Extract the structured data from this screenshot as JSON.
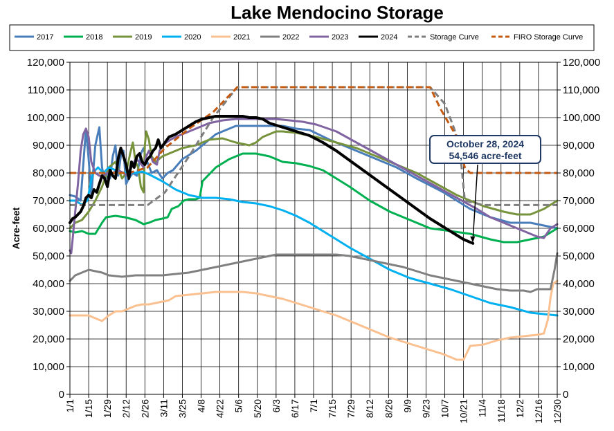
{
  "chart_data": {
    "type": "line",
    "title": "Lake Mendocino Storage",
    "ylabel": "Acre-feet",
    "xlabel": "",
    "ylim": [
      0,
      120000
    ],
    "yticks": [
      0,
      10000,
      20000,
      30000,
      40000,
      50000,
      60000,
      70000,
      80000,
      90000,
      100000,
      110000,
      120000
    ],
    "ytick_labels": [
      "0",
      "10,000",
      "20,000",
      "30,000",
      "40,000",
      "50,000",
      "60,000",
      "70,000",
      "80,000",
      "90,000",
      "100,000",
      "110,000",
      "120,000"
    ],
    "xlim": [
      1,
      365
    ],
    "xticks": [
      1,
      15,
      29,
      43,
      57,
      71,
      85,
      99,
      113,
      127,
      141,
      155,
      169,
      183,
      197,
      211,
      225,
      239,
      253,
      267,
      281,
      295,
      309,
      323,
      337,
      351,
      365
    ],
    "xtick_labels": [
      "1/1",
      "1/15",
      "1/29",
      "2/12",
      "2/26",
      "3/11",
      "3/25",
      "4/8",
      "4/22",
      "5/6",
      "5/20",
      "6/3",
      "6/17",
      "7/1",
      "7/15",
      "7/29",
      "8/12",
      "8/26",
      "9/9",
      "9/23",
      "10/7",
      "10/21",
      "11/4",
      "11/18",
      "12/2",
      "12/16",
      "12/30"
    ],
    "grid": true,
    "legend_position": "top",
    "series": [
      {
        "name": "2017",
        "color": "#4a7ebb",
        "width": 3,
        "dash": "solid",
        "x": [
          1,
          5,
          9,
          11,
          13,
          15,
          17,
          20,
          23,
          25,
          27,
          29,
          31,
          33,
          35,
          37,
          39,
          41,
          43,
          45,
          48,
          51,
          54,
          56,
          58,
          62,
          66,
          70,
          74,
          78,
          85,
          95,
          110,
          125,
          140,
          160,
          170,
          180,
          195,
          210,
          225,
          245,
          260,
          280,
          300,
          315,
          330,
          345,
          365
        ],
        "y": [
          72000,
          71500,
          70000,
          83000,
          96000,
          85000,
          72000,
          90000,
          96500,
          82000,
          77000,
          80000,
          78000,
          86000,
          90000,
          79000,
          86000,
          88000,
          76000,
          78000,
          80000,
          79000,
          87000,
          89000,
          85000,
          80000,
          81000,
          78000,
          80000,
          81000,
          85000,
          88000,
          94000,
          97000,
          97000,
          97000,
          96000,
          95500,
          92000,
          89000,
          86000,
          82000,
          78000,
          73000,
          67000,
          64000,
          62000,
          62000,
          60000
        ]
      },
      {
        "name": "2018",
        "color": "#00b050",
        "width": 3,
        "dash": "solid",
        "x": [
          1,
          5,
          10,
          15,
          20,
          25,
          28,
          35,
          42,
          50,
          56,
          60,
          65,
          70,
          74,
          77,
          82,
          86,
          90,
          95,
          98,
          100,
          110,
          120,
          130,
          140,
          150,
          160,
          170,
          180,
          190,
          200,
          210,
          225,
          240,
          255,
          270,
          285,
          300,
          315,
          325,
          335,
          345,
          355,
          365
        ],
        "y": [
          59000,
          58500,
          59000,
          58000,
          58000,
          62000,
          64000,
          64500,
          64000,
          63000,
          61500,
          62000,
          63000,
          63500,
          64000,
          67000,
          68000,
          70000,
          70500,
          70500,
          71000,
          77000,
          82000,
          85000,
          87000,
          87000,
          86000,
          84000,
          83500,
          82500,
          81000,
          78000,
          75000,
          70000,
          66000,
          63000,
          60000,
          59000,
          58000,
          56000,
          55000,
          55000,
          56000,
          57000,
          60000
        ]
      },
      {
        "name": "2019",
        "color": "#77933c",
        "width": 3,
        "dash": "solid",
        "x": [
          1,
          5,
          10,
          15,
          20,
          25,
          30,
          35,
          40,
          43,
          46,
          48,
          50,
          52,
          54,
          56,
          57,
          58,
          60,
          62,
          65,
          70,
          75,
          80,
          85,
          95,
          105,
          115,
          125,
          135,
          140,
          145,
          155,
          160,
          170,
          185,
          200,
          215,
          230,
          245,
          260,
          275,
          290,
          300,
          310,
          325,
          335,
          345,
          355,
          365
        ],
        "y": [
          60000,
          62000,
          63000,
          66000,
          70000,
          75000,
          82000,
          84000,
          78000,
          80000,
          87000,
          91000,
          84000,
          82000,
          75000,
          73000,
          90000,
          95000,
          92000,
          86000,
          84000,
          86000,
          87000,
          88000,
          89000,
          90000,
          92000,
          92500,
          91000,
          90000,
          91000,
          93000,
          95000,
          95000,
          94500,
          93000,
          91000,
          89000,
          86000,
          83000,
          80000,
          76000,
          72000,
          70000,
          68000,
          66000,
          65000,
          65000,
          67000,
          70000
        ]
      },
      {
        "name": "2020",
        "color": "#00b0f0",
        "width": 3,
        "dash": "solid",
        "x": [
          1,
          5,
          10,
          14,
          18,
          22,
          26,
          30,
          35,
          40,
          45,
          50,
          55,
          60,
          70,
          80,
          90,
          100,
          110,
          120,
          130,
          140,
          150,
          160,
          170,
          180,
          190,
          200,
          210,
          225,
          240,
          255,
          270,
          285,
          300,
          315,
          330,
          345,
          355,
          365
        ],
        "y": [
          70000,
          70000,
          68500,
          70000,
          80000,
          82000,
          80000,
          82000,
          81000,
          80000,
          80500,
          80000,
          80500,
          79500,
          77000,
          74000,
          72000,
          71000,
          71000,
          70500,
          69500,
          69000,
          68000,
          66500,
          64500,
          62000,
          59000,
          56000,
          53000,
          49000,
          45000,
          42000,
          40000,
          38000,
          35500,
          33000,
          31500,
          29500,
          29000,
          28500
        ]
      },
      {
        "name": "2021",
        "color": "#fac090",
        "width": 3,
        "dash": "solid",
        "x": [
          1,
          5,
          10,
          15,
          20,
          25,
          30,
          35,
          40,
          45,
          50,
          55,
          60,
          65,
          70,
          75,
          80,
          90,
          100,
          110,
          120,
          130,
          140,
          150,
          160,
          170,
          180,
          190,
          200,
          210,
          220,
          230,
          240,
          250,
          260,
          270,
          280,
          285,
          290,
          295,
          300,
          310,
          320,
          330,
          340,
          350,
          355,
          358,
          360,
          362,
          365
        ],
        "y": [
          28500,
          28500,
          28500,
          28500,
          27500,
          26500,
          28500,
          30000,
          30000,
          31000,
          32000,
          32500,
          32500,
          33000,
          33500,
          34000,
          35500,
          36000,
          36500,
          37000,
          37000,
          37000,
          36500,
          35500,
          34500,
          33000,
          31500,
          30000,
          28500,
          26500,
          24500,
          22500,
          20500,
          19000,
          17500,
          16000,
          14500,
          13500,
          12500,
          12500,
          17500,
          18000,
          19500,
          20500,
          21000,
          21500,
          22000,
          27000,
          35000,
          40000,
          41000
        ]
      },
      {
        "name": "2022",
        "color": "#808080",
        "width": 3,
        "dash": "solid",
        "x": [
          1,
          5,
          10,
          15,
          20,
          25,
          30,
          40,
          50,
          60,
          70,
          80,
          90,
          100,
          110,
          120,
          130,
          140,
          150,
          155,
          160,
          170,
          180,
          190,
          200,
          210,
          220,
          230,
          240,
          250,
          260,
          270,
          280,
          290,
          300,
          310,
          320,
          330,
          340,
          345,
          350,
          355,
          360,
          363,
          365
        ],
        "y": [
          41000,
          43000,
          44000,
          45000,
          44500,
          44000,
          43000,
          42500,
          43000,
          43000,
          43000,
          43500,
          44000,
          45000,
          46000,
          47000,
          48000,
          49000,
          50000,
          50500,
          50500,
          50500,
          50500,
          50500,
          50500,
          50000,
          49000,
          48000,
          47000,
          46000,
          44500,
          43000,
          42000,
          41000,
          40000,
          39000,
          38000,
          37500,
          37500,
          37000,
          38000,
          38000,
          38000,
          45000,
          51000
        ]
      },
      {
        "name": "2023",
        "color": "#8064a2",
        "width": 3,
        "dash": "solid",
        "x": [
          1,
          2,
          3,
          5,
          7,
          9,
          11,
          13,
          15,
          17,
          20,
          23,
          26,
          29,
          33,
          37,
          41,
          44,
          47,
          50,
          53,
          56,
          58,
          60,
          63,
          66,
          68,
          70,
          73,
          76,
          80,
          85,
          95,
          105,
          115,
          125,
          135,
          145,
          155,
          165,
          175,
          185,
          200,
          215,
          230,
          245,
          260,
          275,
          290,
          305,
          315,
          325,
          335,
          345,
          350,
          355,
          360,
          365
        ],
        "y": [
          52000,
          51000,
          56000,
          66000,
          76000,
          88000,
          94000,
          96000,
          93000,
          84000,
          80000,
          79000,
          79000,
          80000,
          80000,
          81000,
          80000,
          79000,
          82000,
          85000,
          84000,
          82000,
          86000,
          88000,
          84000,
          83000,
          88000,
          90000,
          91000,
          92000,
          93000,
          94000,
          96000,
          98000,
          99000,
          99500,
          99500,
          99500,
          99500,
          99000,
          98500,
          97500,
          95000,
          91000,
          87000,
          83000,
          79000,
          75000,
          71000,
          67000,
          64000,
          62000,
          60000,
          58000,
          57000,
          56500,
          60000,
          61500
        ]
      },
      {
        "name": "2024",
        "color": "#000000",
        "width": 4,
        "dash": "solid",
        "x": [
          1,
          3,
          5,
          7,
          9,
          11,
          13,
          15,
          17,
          19,
          21,
          23,
          25,
          27,
          29,
          31,
          33,
          35,
          37,
          39,
          41,
          43,
          45,
          47,
          49,
          51,
          53,
          55,
          57,
          59,
          61,
          63,
          65,
          67,
          69,
          72,
          75,
          80,
          85,
          90,
          95,
          100,
          105,
          110,
          115,
          120,
          125,
          130,
          135,
          140,
          145,
          150,
          160,
          170,
          180,
          190,
          200,
          210,
          220,
          230,
          240,
          250,
          260,
          270,
          280,
          290,
          295,
          302
        ],
        "y": [
          62000,
          63500,
          64000,
          65000,
          66000,
          68000,
          71000,
          72000,
          71000,
          74000,
          73000,
          76000,
          79000,
          78000,
          75000,
          81000,
          79000,
          78000,
          85000,
          89000,
          86000,
          83000,
          78000,
          84000,
          82000,
          86000,
          87000,
          84000,
          83000,
          85000,
          86000,
          88000,
          89000,
          92000,
          89000,
          91000,
          93000,
          94000,
          95500,
          97000,
          98500,
          99500,
          100000,
          100500,
          100500,
          100500,
          100500,
          100500,
          100000,
          100000,
          99500,
          98000,
          96500,
          95000,
          93500,
          91000,
          88000,
          84500,
          81000,
          77500,
          74000,
          70500,
          67000,
          63500,
          60500,
          57500,
          56000,
          54546
        ]
      },
      {
        "name": "Storage Curve",
        "color": "#7f7f7f",
        "width": 3,
        "dash": "dash",
        "x": [
          1,
          59,
          72,
          90,
          108,
          126,
          270,
          281,
          288,
          292,
          296,
          310,
          365
        ],
        "y": [
          68400,
          68400,
          73000,
          86000,
          100000,
          111000,
          111000,
          105000,
          96000,
          90000,
          70000,
          68400,
          68400
        ]
      },
      {
        "name": "FIRO Storage Curve",
        "color": "#c55a11",
        "width": 3,
        "dash": "dash",
        "x": [
          1,
          45,
          59,
          72,
          90,
          108,
          126,
          270,
          278,
          290,
          296,
          300,
          365
        ],
        "y": [
          80000,
          80000,
          82000,
          89000,
          96000,
          102000,
          111000,
          111000,
          103000,
          93000,
          82000,
          80000,
          80000
        ]
      }
    ],
    "annotation": {
      "line1": "October 28, 2024",
      "line2": "54,546 acre-feet",
      "point_x": 302,
      "point_y": 54546
    }
  }
}
